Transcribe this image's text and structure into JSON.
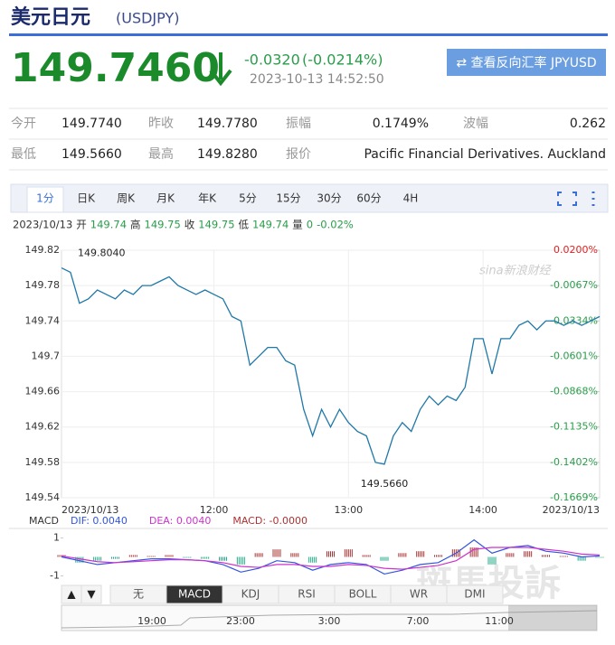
{
  "header": {
    "title": "美元日元",
    "code": "(USDJPY)"
  },
  "quote": {
    "price": "149.7460",
    "change": "-0.0320",
    "change_pct": "(-0.0214%)",
    "time": "2023-10-13 14:52:50",
    "button": "⇄ 查看反向汇率 JPYUSD"
  },
  "stats": {
    "rows": [
      [
        "今开",
        "149.7740",
        "昨收",
        "149.7780",
        "振幅",
        "0.1749%",
        "波幅",
        "0.262"
      ],
      [
        "最低",
        "149.5660",
        "最高",
        "149.8280",
        "报价",
        "Pacific Financial Derivatives. Auckland"
      ]
    ]
  },
  "tabs": [
    "1分",
    "日K",
    "周K",
    "月K",
    "年K",
    "5分",
    "15分",
    "30分",
    "60分",
    "4H"
  ],
  "info": [
    "2023/10/13",
    "开",
    "149.74",
    "高",
    "149.75",
    "收",
    "149.75",
    "低",
    "149.74",
    "量",
    "0",
    "-0.02%"
  ],
  "watermarks": [
    "sina新浪财经",
    "斑馬投訴"
  ],
  "chart_data": [
    {
      "type": "line",
      "categories": [
        "2023/10/13",
        null,
        null,
        null,
        null,
        null,
        null,
        null,
        null,
        null,
        null,
        null,
        null,
        null,
        null,
        null,
        null,
        "12:00",
        null,
        null,
        null,
        null,
        null,
        null,
        null,
        null,
        null,
        null,
        null,
        null,
        null,
        null,
        "13:00",
        null,
        null,
        null,
        null,
        null,
        null,
        null,
        null,
        null,
        null,
        null,
        null,
        null,
        null,
        "14:00",
        null,
        null,
        null,
        null,
        null,
        null,
        null,
        null,
        null,
        null,
        null,
        null,
        "2023/10/13"
      ],
      "series": [
        {
          "name": "USDJPY",
          "color": "#1f78a8",
          "values": [
            149.8,
            149.795,
            149.76,
            149.765,
            149.775,
            149.77,
            149.765,
            149.775,
            149.77,
            149.78,
            149.78,
            149.785,
            149.79,
            149.78,
            149.775,
            149.77,
            149.775,
            149.77,
            149.765,
            149.745,
            149.74,
            149.69,
            149.7,
            149.71,
            149.71,
            149.695,
            149.69,
            149.64,
            149.61,
            149.64,
            149.62,
            149.64,
            149.625,
            149.615,
            149.61,
            149.58,
            149.578,
            149.61,
            149.625,
            149.615,
            149.64,
            149.655,
            149.645,
            149.655,
            149.65,
            149.665,
            149.72,
            149.72,
            149.68,
            149.72,
            149.72,
            149.735,
            149.74,
            149.73,
            149.74,
            149.74,
            149.735,
            149.74,
            149.735,
            149.74,
            149.745
          ]
        }
      ],
      "ylim": [
        149.54,
        149.82
      ],
      "yticks": [
        149.54,
        149.58,
        149.62,
        149.66,
        149.7,
        149.74,
        149.78,
        149.82
      ],
      "y2lim": [
        -0.1669,
        0.02
      ],
      "y2ticks": [
        {
          "value": 0.02,
          "label": "0.0200%"
        },
        {
          "value": -0.0067,
          "label": "-0.0067%"
        },
        {
          "value": -0.0334,
          "label": "-0.0334%"
        },
        {
          "value": -0.0601,
          "label": "-0.0601%"
        },
        {
          "value": -0.0868,
          "label": "-0.0868%"
        },
        {
          "value": -0.1135,
          "label": "-0.1135%"
        },
        {
          "value": -0.1402,
          "label": "-0.1402%"
        },
        {
          "value": -0.1669,
          "label": "-0.1669%"
        }
      ],
      "annotations": [
        "149.8040",
        "149.5660"
      ],
      "grid": true
    },
    {
      "type": "macd",
      "title": "MACD",
      "series": [
        {
          "name": "DIF: 0.0040",
          "color": "#3355dd",
          "values": [
            0,
            -0.2,
            -0.4,
            -0.3,
            -0.2,
            -0.1,
            -0.1,
            -0.15,
            -0.2,
            -0.4,
            -0.8,
            -0.6,
            -0.2,
            -0.3,
            -0.7,
            -0.4,
            -0.3,
            -0.4,
            -0.9,
            -0.7,
            -0.4,
            -0.3,
            0.2,
            0.9,
            0.2,
            0.5,
            0.6,
            0.3,
            0.2,
            0,
            0.05
          ]
        },
        {
          "name": "DEA: 0.0040",
          "color": "#cc33cc",
          "values": [
            0.05,
            -0.1,
            -0.25,
            -0.3,
            -0.25,
            -0.2,
            -0.15,
            -0.15,
            -0.2,
            -0.3,
            -0.5,
            -0.55,
            -0.4,
            -0.4,
            -0.5,
            -0.5,
            -0.4,
            -0.45,
            -0.6,
            -0.65,
            -0.55,
            -0.45,
            -0.2,
            0.4,
            0.5,
            0.5,
            0.5,
            0.4,
            0.3,
            0.15,
            0.1
          ]
        },
        {
          "name": "MACD: -0.0000",
          "color": "#aa3333",
          "values": [
            0.1,
            -0.3,
            -0.2,
            -0.1,
            0.1,
            0.05,
            0.1,
            -0.05,
            -0.1,
            -0.2,
            -0.4,
            0.2,
            0.4,
            0.2,
            -0.3,
            0.3,
            0.4,
            0.1,
            -0.2,
            0.2,
            0.3,
            0.1,
            0.4,
            0.5,
            -0.4,
            0.2,
            0.3,
            0.1,
            0.05,
            -0.2,
            -0.05
          ]
        }
      ],
      "ylim": [
        -1.5,
        1.5
      ],
      "yticks": [
        1,
        -1
      ]
    }
  ],
  "indicator_tabs": [
    "▲",
    "▼",
    "无",
    "MACD",
    "KDJ",
    "RSI",
    "BOLL",
    "WR",
    "DMI"
  ],
  "navigator": {
    "labels": [
      "19:00",
      "23:00",
      "3:00",
      "7:00",
      "11:00"
    ]
  }
}
